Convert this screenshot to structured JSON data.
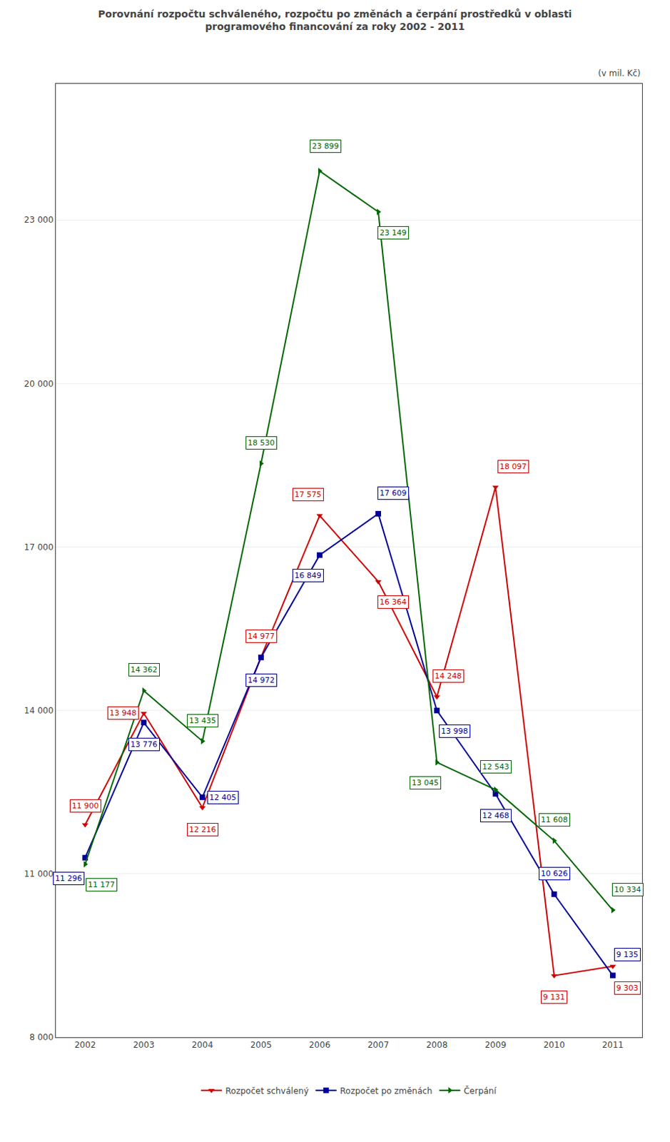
{
  "chart_data": {
    "type": "line",
    "title": "Porovnání rozpočtu schváleného, rozpočtu po změnách a čerpání prostředků v oblasti\nprogramového financování za roky 2002 - 2011",
    "subtitle": "(v mil. Kč)",
    "x": [
      2002,
      2003,
      2004,
      2005,
      2006,
      2007,
      2008,
      2009,
      2010,
      2011
    ],
    "xlim": [
      2001.5,
      2011.5
    ],
    "xticks": [
      2002,
      2003,
      2004,
      2005,
      2006,
      2007,
      2008,
      2009,
      2010,
      2011
    ],
    "ylim": [
      8000,
      25500
    ],
    "yticks": [
      {
        "value": 8000,
        "label": "8 000"
      },
      {
        "value": 11000,
        "label": "11 000"
      },
      {
        "value": 14000,
        "label": "14 000"
      },
      {
        "value": 17000,
        "label": "17 000"
      },
      {
        "value": 20000,
        "label": "20 000"
      },
      {
        "value": 23000,
        "label": "23 000"
      }
    ],
    "grid": true,
    "legend": "bottom",
    "data_labels": true,
    "series": [
      {
        "name": "Rozpočet schválený",
        "color": "#CC0000",
        "marker": "triangle-down",
        "values": [
          11900,
          13948,
          12216,
          14977,
          17575,
          16364,
          14248,
          18097,
          9131,
          9303
        ],
        "value_labels": [
          "11 900",
          "13 948",
          "12 216",
          "14 977",
          "17 575",
          "16 364",
          "14 248",
          "18 097",
          "9 131",
          "9 303"
        ]
      },
      {
        "name": "Rozpočet po změnách",
        "color": "#000099",
        "marker": "square",
        "values": [
          11296,
          13776,
          12405,
          14972,
          16849,
          17609,
          13998,
          12468,
          10626,
          9135
        ],
        "value_labels": [
          "11 296",
          "13 776",
          "12 405",
          "14 972",
          "16 849",
          "17 609",
          "13 998",
          "12 468",
          "10 626",
          "9 135"
        ]
      },
      {
        "name": "Čerpání",
        "color": "#006600",
        "marker": "triangle-right",
        "values": [
          11177,
          14362,
          13435,
          18530,
          23899,
          23149,
          13045,
          12543,
          11608,
          10334
        ],
        "value_labels": [
          "11 177",
          "14 362",
          "13 435",
          "18 530",
          "23 899",
          "23 149",
          "13 045",
          "12 543",
          "11 608",
          "10 334"
        ]
      }
    ]
  }
}
